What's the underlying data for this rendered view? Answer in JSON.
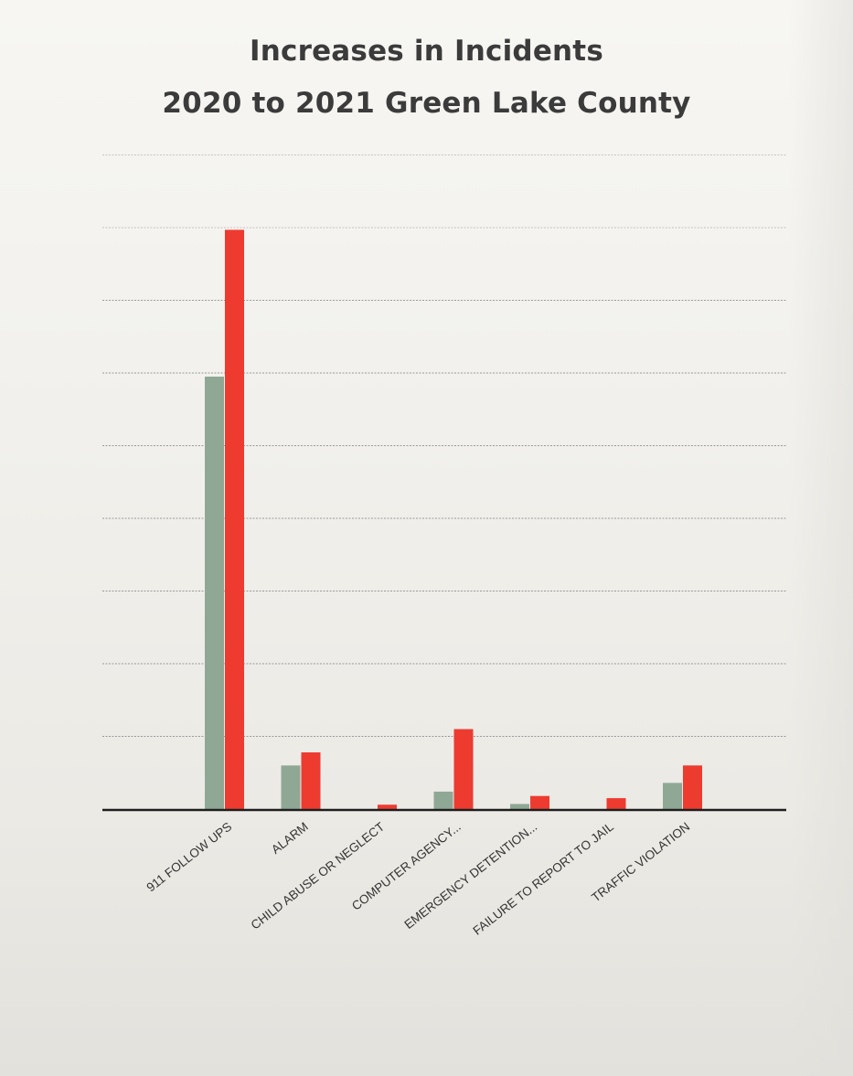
{
  "chart_data": {
    "type": "bar",
    "title": [
      "Increases in Incidents",
      "2020 to 2021 Green Lake County"
    ],
    "xlabel": "",
    "ylabel": "",
    "categories": [
      "911 FOLLOW UPS",
      "ALARM",
      "CHILD ABUSE OR NEGLECT",
      "COMPUTER AGENCY...",
      "EMERGENCY DETENTION...",
      "FAILURE TO REPORT TO JAIL",
      "TRAFFIC VIOLATION"
    ],
    "series": [
      {
        "values": [
          59.5,
          6,
          0,
          2.4,
          0.7,
          0,
          3.6
        ],
        "color": "#8fa895"
      },
      {
        "values": [
          79.7,
          7.8,
          0.6,
          11,
          1.8,
          1.5,
          6
        ],
        "color": "#ee3b30"
      }
    ],
    "ylim": [
      0,
      90
    ],
    "y_gridline_step": 10,
    "y_tick_labels_shown": false,
    "legend": "none",
    "grid": true
  }
}
